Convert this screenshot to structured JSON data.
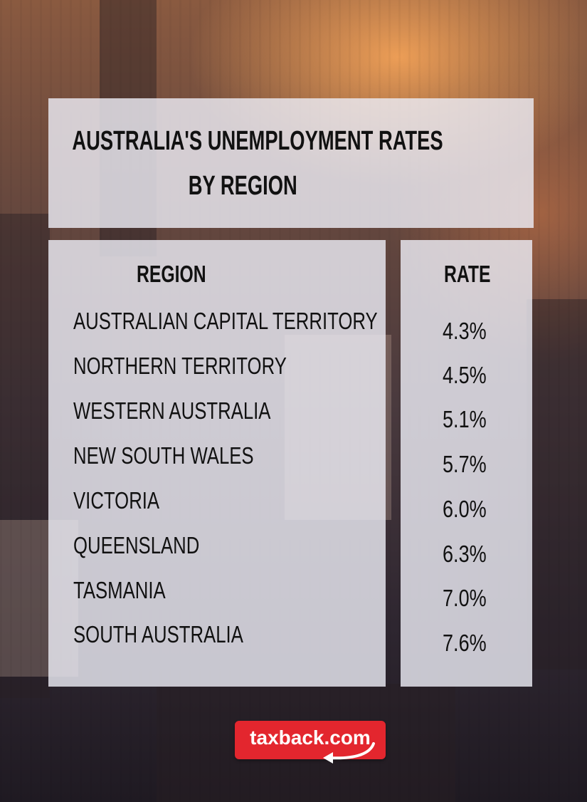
{
  "title": {
    "line1": "AUSTRALIA'S UNEMPLOYMENT RATES",
    "line2": "BY REGION"
  },
  "table": {
    "headers": {
      "region": "REGION",
      "rate": "RATE"
    },
    "rows": [
      {
        "region": "AUSTRALIAN CAPITAL TERRITORY",
        "rate": "4.3%"
      },
      {
        "region": "NORTHERN TERRITORY",
        "rate": "4.5%"
      },
      {
        "region": "WESTERN AUSTRALIA",
        "rate": "5.1%"
      },
      {
        "region": "NEW SOUTH WALES",
        "rate": "5.7%"
      },
      {
        "region": "VICTORIA",
        "rate": "6.0%"
      },
      {
        "region": "QUEENSLAND",
        "rate": "6.3%"
      },
      {
        "region": "TASMANIA",
        "rate": "7.0%"
      },
      {
        "region": "SOUTH AUSTRALIA",
        "rate": "7.6%"
      }
    ]
  },
  "logo": {
    "text": "taxback.com",
    "color": "#e3262e"
  }
}
